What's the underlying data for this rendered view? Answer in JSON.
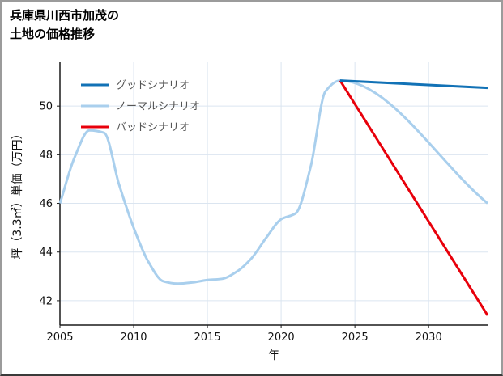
{
  "page": {
    "background": "#ffffff"
  },
  "title": {
    "line1": "兵庫県川西市加茂の",
    "line2": "土地の価格推移"
  },
  "chart_data": {
    "type": "line",
    "title": "兵庫県川西市加茂の土地の価格推移",
    "xlabel": "年",
    "ylabel": "坪（3.3㎡）単価（万円）",
    "xlim": [
      2005,
      2034
    ],
    "ylim": [
      41,
      51.8
    ],
    "x_ticks": [
      2005,
      2010,
      2015,
      2020,
      2025,
      2030
    ],
    "y_ticks": [
      42,
      44,
      46,
      48,
      50
    ],
    "grid": true,
    "grid_color": "#dbe5f0",
    "axis_color": "#1a1a1a",
    "tick_label_color": "#111111",
    "legend": {
      "position": "upper-left",
      "text_color": "#555555"
    },
    "legend_order": [
      "グッドシナリオ",
      "ノーマルシナリオ",
      "バッドシナリオ"
    ],
    "series": [
      {
        "name": "ノーマルシナリオ",
        "color": "#a9cfed",
        "width": 3,
        "smooth": true,
        "x": [
          2005,
          2006,
          2007,
          2008,
          2009,
          2010,
          2011,
          2012,
          2013,
          2014,
          2015,
          2016,
          2017,
          2018,
          2019,
          2020,
          2021,
          2022,
          2023,
          2024,
          2034
        ],
        "y": [
          46.0,
          47.9,
          49.0,
          48.9,
          46.8,
          45.0,
          43.6,
          42.8,
          42.7,
          42.75,
          42.85,
          42.9,
          43.2,
          43.75,
          44.6,
          45.35,
          45.6,
          47.5,
          50.6,
          51.05,
          46.0
        ]
      },
      {
        "name": "バッドシナリオ",
        "color": "#e8000b",
        "width": 3,
        "smooth": false,
        "x": [
          2024,
          2034
        ],
        "y": [
          51.05,
          41.4
        ]
      },
      {
        "name": "グッドシナリオ",
        "color": "#1272b6",
        "width": 3,
        "smooth": false,
        "x": [
          2024,
          2034
        ],
        "y": [
          51.05,
          50.75
        ]
      }
    ]
  }
}
